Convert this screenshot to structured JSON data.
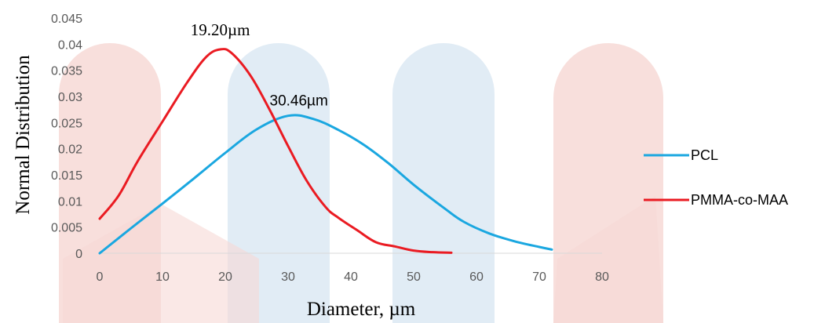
{
  "chart_data": {
    "type": "line",
    "xlabel": "Diameter, µm",
    "ylabel": "Normal Distribution",
    "xlim": [
      0,
      80
    ],
    "ylim": [
      0,
      0.045
    ],
    "xticks": [
      "0",
      "10",
      "20",
      "30",
      "40",
      "50",
      "60",
      "70",
      "80"
    ],
    "yticks": [
      "0",
      "0.005",
      "0.01",
      "0.015",
      "0.02",
      "0.025",
      "0.03",
      "0.035",
      "0.04",
      "0.045"
    ],
    "grid": false,
    "legend_position": "right",
    "series": [
      {
        "name": "PCL",
        "color": "#1aa7e0",
        "x": [
          0,
          5,
          10,
          15,
          20,
          25,
          30,
          34,
          38,
          42,
          46,
          50,
          55,
          58,
          62,
          66,
          70,
          72
        ],
        "y": [
          0.0,
          0.0048,
          0.0095,
          0.0143,
          0.0192,
          0.0237,
          0.0263,
          0.0257,
          0.0236,
          0.0208,
          0.0172,
          0.0131,
          0.0085,
          0.006,
          0.0038,
          0.0023,
          0.0012,
          0.0007
        ]
      },
      {
        "name": "PMMA-co-MAA",
        "color": "#ea1b22",
        "x": [
          0,
          3,
          6,
          10,
          14,
          17,
          19.2,
          21,
          24,
          27,
          30,
          33,
          36,
          38,
          41,
          44,
          47,
          50,
          53,
          56
        ],
        "y": [
          0.0066,
          0.011,
          0.0175,
          0.0252,
          0.0328,
          0.0376,
          0.039,
          0.0383,
          0.034,
          0.0276,
          0.0205,
          0.0138,
          0.0088,
          0.0068,
          0.0044,
          0.0021,
          0.0013,
          0.0005,
          0.0002,
          0.0001
        ]
      }
    ],
    "annotations": [
      {
        "text": "19.20µm",
        "x": 19.2,
        "y": 0.039,
        "font": "serif"
      },
      {
        "text": "30.46µm",
        "x": 30.46,
        "y": 0.0263,
        "font": "sans"
      }
    ]
  },
  "watermark": {
    "colors": [
      "#f7d9d6",
      "#dce9f3"
    ]
  }
}
